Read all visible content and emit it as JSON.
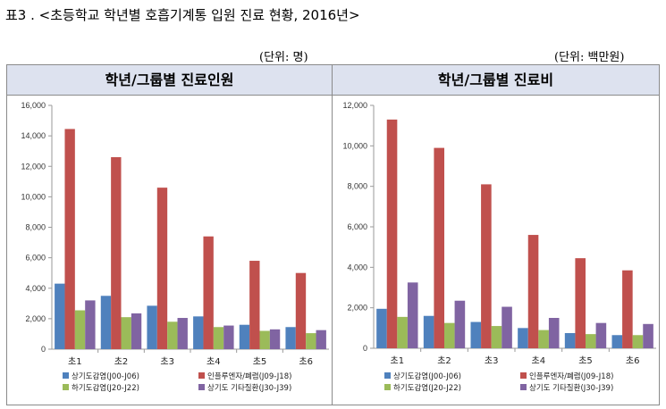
{
  "caption": "표3 . <초등학교 학년별 호흡기계통 입원 진료 현황, 2016년>",
  "units": {
    "left": "(단위: 명)",
    "right": "(단위: 백만원)"
  },
  "colors": {
    "s1": "#4f81bd",
    "s2": "#c0504d",
    "s3": "#9bbb59",
    "s4": "#8064a2"
  },
  "chart_data": [
    {
      "type": "bar",
      "title": "학년/그룹별 진료인원",
      "categories": [
        "초1",
        "초2",
        "초3",
        "초4",
        "초5",
        "초6"
      ],
      "ylim": [
        0,
        16000
      ],
      "yticks": [
        0,
        2000,
        4000,
        6000,
        8000,
        10000,
        12000,
        14000,
        16000
      ],
      "ytick_labels": [
        "0",
        "2,000",
        "4,000",
        "6,000",
        "8,000",
        "10,000",
        "12,000",
        "14,000",
        "16,000"
      ],
      "series": [
        {
          "name": "상기도감염(J00-J06)",
          "values": [
            4300,
            3500,
            2850,
            2150,
            1600,
            1450
          ]
        },
        {
          "name": "인플루엔자/폐렴(J09-J18)",
          "values": [
            14450,
            12600,
            10600,
            7400,
            5800,
            5000
          ]
        },
        {
          "name": "하기도감염(J20-J22)",
          "values": [
            2550,
            2100,
            1800,
            1450,
            1200,
            1050
          ]
        },
        {
          "name": "상기도 기타질환(J30-J39)",
          "values": [
            3200,
            2350,
            2050,
            1550,
            1300,
            1250
          ]
        }
      ]
    },
    {
      "type": "bar",
      "title": "학년/그룹별 진료비",
      "categories": [
        "초1",
        "초2",
        "초3",
        "초4",
        "초5",
        "초6"
      ],
      "ylim": [
        0,
        12000
      ],
      "yticks": [
        0,
        2000,
        4000,
        6000,
        8000,
        10000,
        12000
      ],
      "ytick_labels": [
        "0",
        "2,000",
        "4,000",
        "6,000",
        "8,000",
        "10,000",
        "12,000"
      ],
      "series": [
        {
          "name": "상기도감염(J00-J06)",
          "values": [
            1950,
            1600,
            1300,
            1000,
            750,
            650
          ]
        },
        {
          "name": "인플루엔자/폐렴(J09-J18)",
          "values": [
            11300,
            9900,
            8100,
            5600,
            4450,
            3850
          ]
        },
        {
          "name": "하기도감염(J20-J22)",
          "values": [
            1550,
            1250,
            1100,
            900,
            700,
            650
          ]
        },
        {
          "name": "상기도 기타질환(J30-J39)",
          "values": [
            3250,
            2350,
            2050,
            1500,
            1250,
            1200
          ]
        }
      ]
    }
  ]
}
